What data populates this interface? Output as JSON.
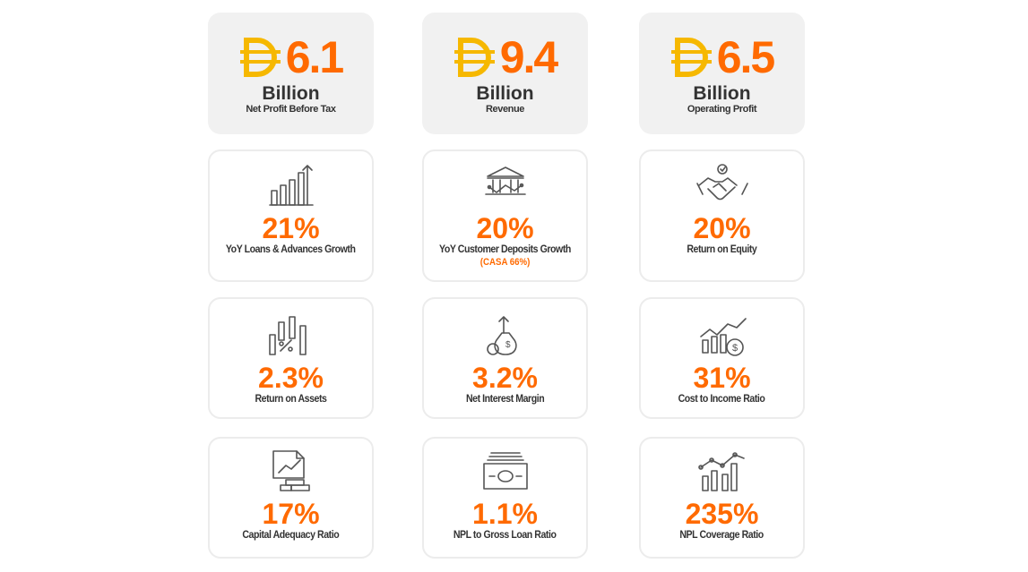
{
  "highlights": [
    {
      "value": "6.1",
      "unit": "Billion",
      "label": "Net Profit Before Tax"
    },
    {
      "value": "9.4",
      "unit": "Billion",
      "label": "Revenue"
    },
    {
      "value": "6.5",
      "unit": "Billion",
      "label": "Operating Profit"
    }
  ],
  "metrics": [
    {
      "value": "21%",
      "label": "YoY Loans & Advances Growth"
    },
    {
      "value": "20%",
      "label": "YoY Customer Deposits Growth",
      "note": "(CASA 66%)"
    },
    {
      "value": "20%",
      "label": "Return on Equity"
    },
    {
      "value": "2.3%",
      "label": "Return on Assets"
    },
    {
      "value": "3.2%",
      "label": "Net Interest Margin"
    },
    {
      "value": "31%",
      "label": "Cost to Income Ratio"
    },
    {
      "value": "17%",
      "label": "Capital Adequacy Ratio"
    },
    {
      "value": "1.1%",
      "label": "NPL to Gross Loan Ratio"
    },
    {
      "value": "235%",
      "label": "NPL Coverage Ratio"
    }
  ]
}
